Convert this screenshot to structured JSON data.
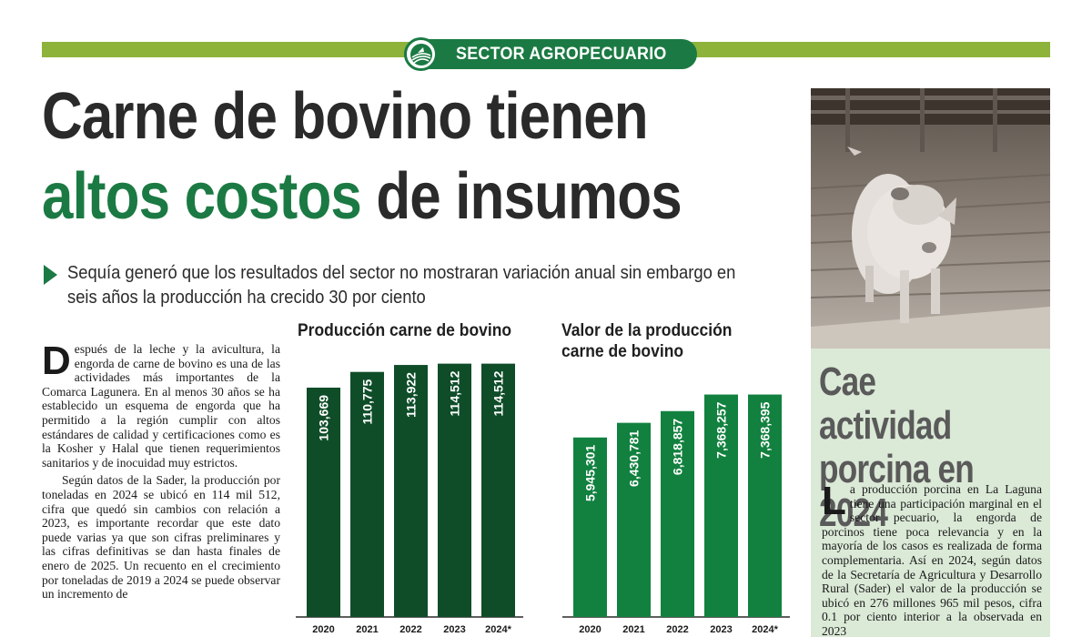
{
  "section": {
    "label": "SECTOR AGROPECUARIO"
  },
  "headline": {
    "line1": "Carne de bovino tienen",
    "line2_accent": "altos costos",
    "line2_rest": " de insumos"
  },
  "subheadline": "Sequía generó que los resultados del sector no mostraran variación anual sin embargo en seis años la producción ha crecido 30 por ciento",
  "body": {
    "dropcap": "D",
    "paragraph1": "espués de la leche y la avicultura, la engorda de carne de bovino es una de las actividades más importantes de la Comarca Lagunera. En al menos 30 años se ha establecido un esquema de engorda que ha permitido a la región cumplir con altos estándares de calidad y certificaciones como es la Kosher y Halal que tienen requerimientos sanitarios y de inocuidad muy estrictos.",
    "paragraph2": "Según datos de la Sader, la producción por toneladas en 2024 se ubicó en 114 mil 512, cifra que quedó sin cambios con relación a 2023, es importante recordar que este dato puede varias ya que son cifras preliminares y las cifras definitivas se dan hasta finales de enero de 2025. Un recuento en el crecimiento por toneladas de 2019 a 2024 se puede observar un incremento de"
  },
  "colors": {
    "brand_green": "#1b7a43",
    "bar_dark": "#0f4d29",
    "bar_bright": "#12813f",
    "section_bar": "#8db33a",
    "sidebar_bg": "#dbe9d7"
  },
  "chart_data": [
    {
      "type": "bar",
      "title": "Producción carne de bovino",
      "categories": [
        "2020",
        "2021",
        "2022",
        "2023",
        "2024*"
      ],
      "values": [
        103669,
        110775,
        113922,
        114512,
        114512
      ],
      "value_labels": [
        "103,669",
        "110,775",
        "113,922",
        "114,512",
        "114,512"
      ],
      "ylim": [
        0,
        116000
      ],
      "grid": false,
      "legend": "none"
    },
    {
      "type": "bar",
      "title_line1": "Valor de la producción",
      "title_line2": "carne de bovino",
      "categories": [
        "2020",
        "2021",
        "2022",
        "2023",
        "2024*"
      ],
      "values": [
        5945301,
        6430781,
        6818857,
        7368257,
        7368395
      ],
      "value_labels": [
        "5,945,301",
        "6,430,781",
        "6,818,857",
        "7,368,257",
        "7,368,395"
      ],
      "ylim": [
        0,
        8500000
      ],
      "grid": false,
      "legend": "none"
    }
  ],
  "sidebar": {
    "title_line1": "Cae actividad",
    "title_line2": "porcina en 2024",
    "dropcap": "L",
    "text": "a producción porcina en La Laguna tiene una participación marginal en el sector pecuario, la engorda de porcinos tiene poca relevancia y en la mayoría de los casos es realizada de forma complementaria. Así en 2024, según datos de la Secretaría de Agricultura y Desarrollo Rural (Sader) el valor de la producción se ubicó en 276 millones 965 mil pesos, cifra 0.1 por ciento interior a la observada en 2023"
  }
}
